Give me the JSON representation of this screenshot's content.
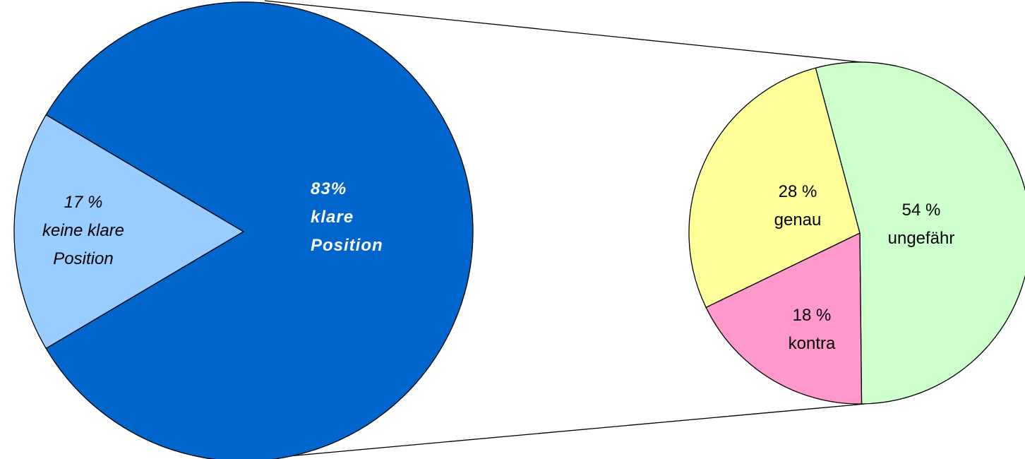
{
  "chart_data": [
    {
      "type": "pie",
      "categories": [
        "keine klare Position",
        "klare Position"
      ],
      "values": [
        17,
        83
      ],
      "value_labels": [
        "17 %",
        "83%"
      ],
      "colors": [
        "#99ccff",
        "#0066cc"
      ]
    },
    {
      "type": "pie",
      "categories": [
        "ungefähr",
        "kontra",
        "genau"
      ],
      "values": [
        54,
        18,
        28
      ],
      "value_labels": [
        "54 %",
        "18 %",
        "28 %"
      ],
      "colors": [
        "#ccffcc",
        "#ff99cc",
        "#ffff99"
      ]
    }
  ]
}
